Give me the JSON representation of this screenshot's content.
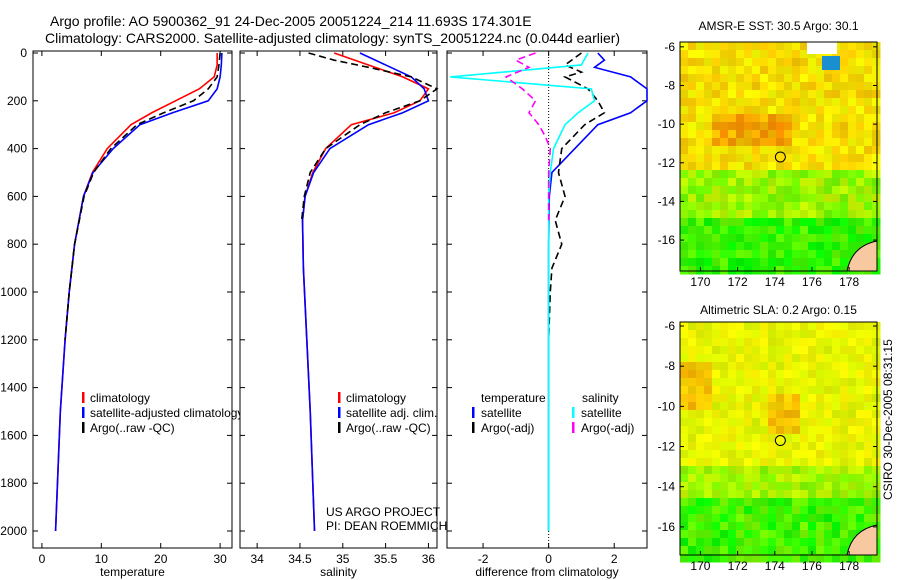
{
  "title_line1": "Argo profile: AO 5900362_91 24-Dec-2005 20051224_214 11.693S 174.301E",
  "title_line2": "Climatology: CARS2000. Satellite-adjusted climatology: synTS_20051224.nc (0.044d earlier)",
  "footer_project": "US ARGO PROJECT",
  "footer_pi": "PI: DEAN ROEMMICH",
  "side_stamp": "CSIRO 30-Dec-2005 08:31:15",
  "chart_data": [
    {
      "type": "line",
      "xlabel": "temperature",
      "xlim": [
        -1.5,
        32
      ],
      "ylim": [
        0,
        2050
      ],
      "xticks": [
        0,
        10,
        20,
        30
      ],
      "yticks": [
        0,
        200,
        400,
        600,
        800,
        1000,
        1200,
        1400,
        1600,
        1800,
        2000
      ],
      "legend": [
        "climatology",
        "satellite-adjusted climatology",
        "Argo(..raw -QC)"
      ],
      "series": [
        {
          "name": "climatology",
          "color": "#ff0000",
          "dash": false,
          "depth": [
            0,
            50,
            100,
            150,
            200,
            250,
            300,
            400,
            500,
            600,
            800,
            1000,
            1200,
            1500,
            2000
          ],
          "values": [
            29.5,
            29.5,
            29.0,
            26.5,
            22.5,
            18.5,
            15.0,
            11.0,
            8.5,
            7.0,
            5.5,
            4.6,
            3.9,
            3.1,
            2.3
          ]
        },
        {
          "name": "satellite-adjusted climatology",
          "color": "#0000ff",
          "dash": false,
          "depth": [
            0,
            50,
            100,
            150,
            200,
            250,
            300,
            400,
            500,
            600,
            800,
            1000,
            1200,
            1500,
            2000
          ],
          "values": [
            30.3,
            30.2,
            30.0,
            29.5,
            28.0,
            22.0,
            16.5,
            12.0,
            8.6,
            7.0,
            5.5,
            4.6,
            3.9,
            3.1,
            2.3
          ]
        },
        {
          "name": "Argo(..raw -QC)",
          "color": "#000000",
          "dash": true,
          "depth": [
            0,
            50,
            100,
            150,
            200,
            250,
            300,
            400,
            500,
            600,
            800,
            1000,
            1200
          ],
          "values": [
            30.0,
            29.8,
            29.5,
            28.0,
            25.5,
            20.5,
            16.0,
            11.6,
            8.7,
            7.1,
            5.5,
            4.6,
            3.9
          ]
        }
      ]
    },
    {
      "type": "line",
      "xlabel": "salinity",
      "xlim": [
        33.8,
        36.1
      ],
      "ylim": [
        0,
        2050
      ],
      "xticks": [
        34,
        34.5,
        35,
        35.5,
        36
      ],
      "legend": [
        "climatology",
        "satellite adj. clim.",
        "Argo(..raw -QC)"
      ],
      "series": [
        {
          "name": "climatology",
          "color": "#ff0000",
          "dash": false,
          "depth": [
            0,
            50,
            100,
            150,
            200,
            250,
            300,
            400,
            500,
            600,
            700,
            900,
            1200,
            1500,
            2000
          ],
          "values": [
            34.9,
            35.3,
            35.7,
            36.0,
            35.9,
            35.6,
            35.1,
            34.8,
            34.65,
            34.56,
            34.53,
            34.54,
            34.58,
            34.62,
            34.67
          ]
        },
        {
          "name": "satellite adj. clim.",
          "color": "#0000ff",
          "dash": false,
          "depth": [
            0,
            50,
            100,
            150,
            200,
            250,
            300,
            400,
            500,
            600,
            700,
            900,
            1200,
            1500,
            2000
          ],
          "values": [
            35.2,
            35.5,
            35.8,
            35.95,
            36.0,
            35.7,
            35.3,
            34.85,
            34.66,
            34.56,
            34.53,
            34.54,
            34.58,
            34.62,
            34.67
          ]
        },
        {
          "name": "Argo(..raw -QC)",
          "color": "#000000",
          "dash": true,
          "depth": [
            0,
            30,
            60,
            100,
            150,
            200,
            250,
            300,
            400,
            500,
            600,
            700
          ],
          "values": [
            34.6,
            34.9,
            35.3,
            35.8,
            36.1,
            35.9,
            35.5,
            35.2,
            34.8,
            34.62,
            34.55,
            34.52
          ]
        }
      ]
    },
    {
      "type": "line",
      "xlabel": "difference from climatology",
      "xlim": [
        -3.1,
        3.0
      ],
      "ylim": [
        0,
        2050
      ],
      "xticks": [
        -2,
        0,
        2
      ],
      "legend_titles": [
        "temperature",
        "salinity"
      ],
      "legend": [
        "satellite",
        "Argo(-adj)",
        "satellite",
        "Argo(-adj)"
      ],
      "series": [
        {
          "name": "temperature satellite",
          "color": "#0000ff",
          "dash": false,
          "depth": [
            0,
            30,
            60,
            100,
            150,
            200,
            250,
            300,
            400,
            500,
            600,
            800,
            1000,
            1500,
            2000
          ],
          "values": [
            1.5,
            1.7,
            1.4,
            2.5,
            3.0,
            3.2,
            2.5,
            1.5,
            0.8,
            0.1,
            0.02,
            0.0,
            0.0,
            0.0,
            0.0
          ]
        },
        {
          "name": "temperature Argo(-adj)",
          "color": "#000000",
          "dash": true,
          "depth": [
            0,
            50,
            80,
            100,
            150,
            200,
            250,
            300,
            400,
            500,
            600,
            700,
            800,
            900,
            1000,
            1200
          ],
          "values": [
            1.0,
            0.5,
            1.0,
            0.5,
            1.2,
            1.5,
            1.7,
            1.1,
            0.4,
            0.3,
            0.5,
            0.2,
            0.4,
            0.1,
            0.05,
            0.0
          ]
        },
        {
          "name": "salinity satellite",
          "color": "#00ffff",
          "dash": false,
          "depth": [
            0,
            50,
            100,
            150,
            200,
            250,
            300,
            400,
            500,
            600,
            800,
            1000,
            1500,
            2000
          ],
          "values": [
            1.2,
            1.0,
            -3.0,
            1.3,
            1.4,
            0.9,
            0.5,
            0.15,
            0.05,
            0.0,
            0.0,
            0.0,
            0.0,
            0.0
          ]
        },
        {
          "name": "salinity Argo(-adj)",
          "color": "#ff00ff",
          "dash": true,
          "depth": [
            0,
            30,
            60,
            100,
            150,
            200,
            250,
            300,
            350,
            400,
            500,
            600,
            700
          ],
          "values": [
            -0.4,
            -1.0,
            -0.6,
            -1.3,
            -0.8,
            -0.4,
            -0.6,
            -0.3,
            -0.1,
            0.05,
            0.0,
            0.0,
            0.0
          ]
        }
      ]
    },
    {
      "type": "heatmap",
      "title": "AMSR-E SST: 30.5 Argo: 30.1",
      "xlim": [
        168.9,
        179.5
      ],
      "ylim": [
        -17.6,
        -5.75
      ],
      "xticks": [
        170,
        172,
        174,
        176,
        178
      ],
      "yticks": [
        -6,
        -8,
        -10,
        -12,
        -14,
        -16
      ],
      "argo_location": [
        174.3,
        -11.7
      ]
    },
    {
      "type": "heatmap",
      "title": "Altimetric SLA: 0.2 Argo: 0.15",
      "xlim": [
        168.9,
        179.5
      ],
      "ylim": [
        -17.4,
        -5.8
      ],
      "xticks": [
        170,
        172,
        174,
        176,
        178
      ],
      "yticks": [
        -6,
        -8,
        -10,
        -12,
        -14,
        -16
      ],
      "argo_location": [
        174.3,
        -11.7
      ]
    }
  ]
}
